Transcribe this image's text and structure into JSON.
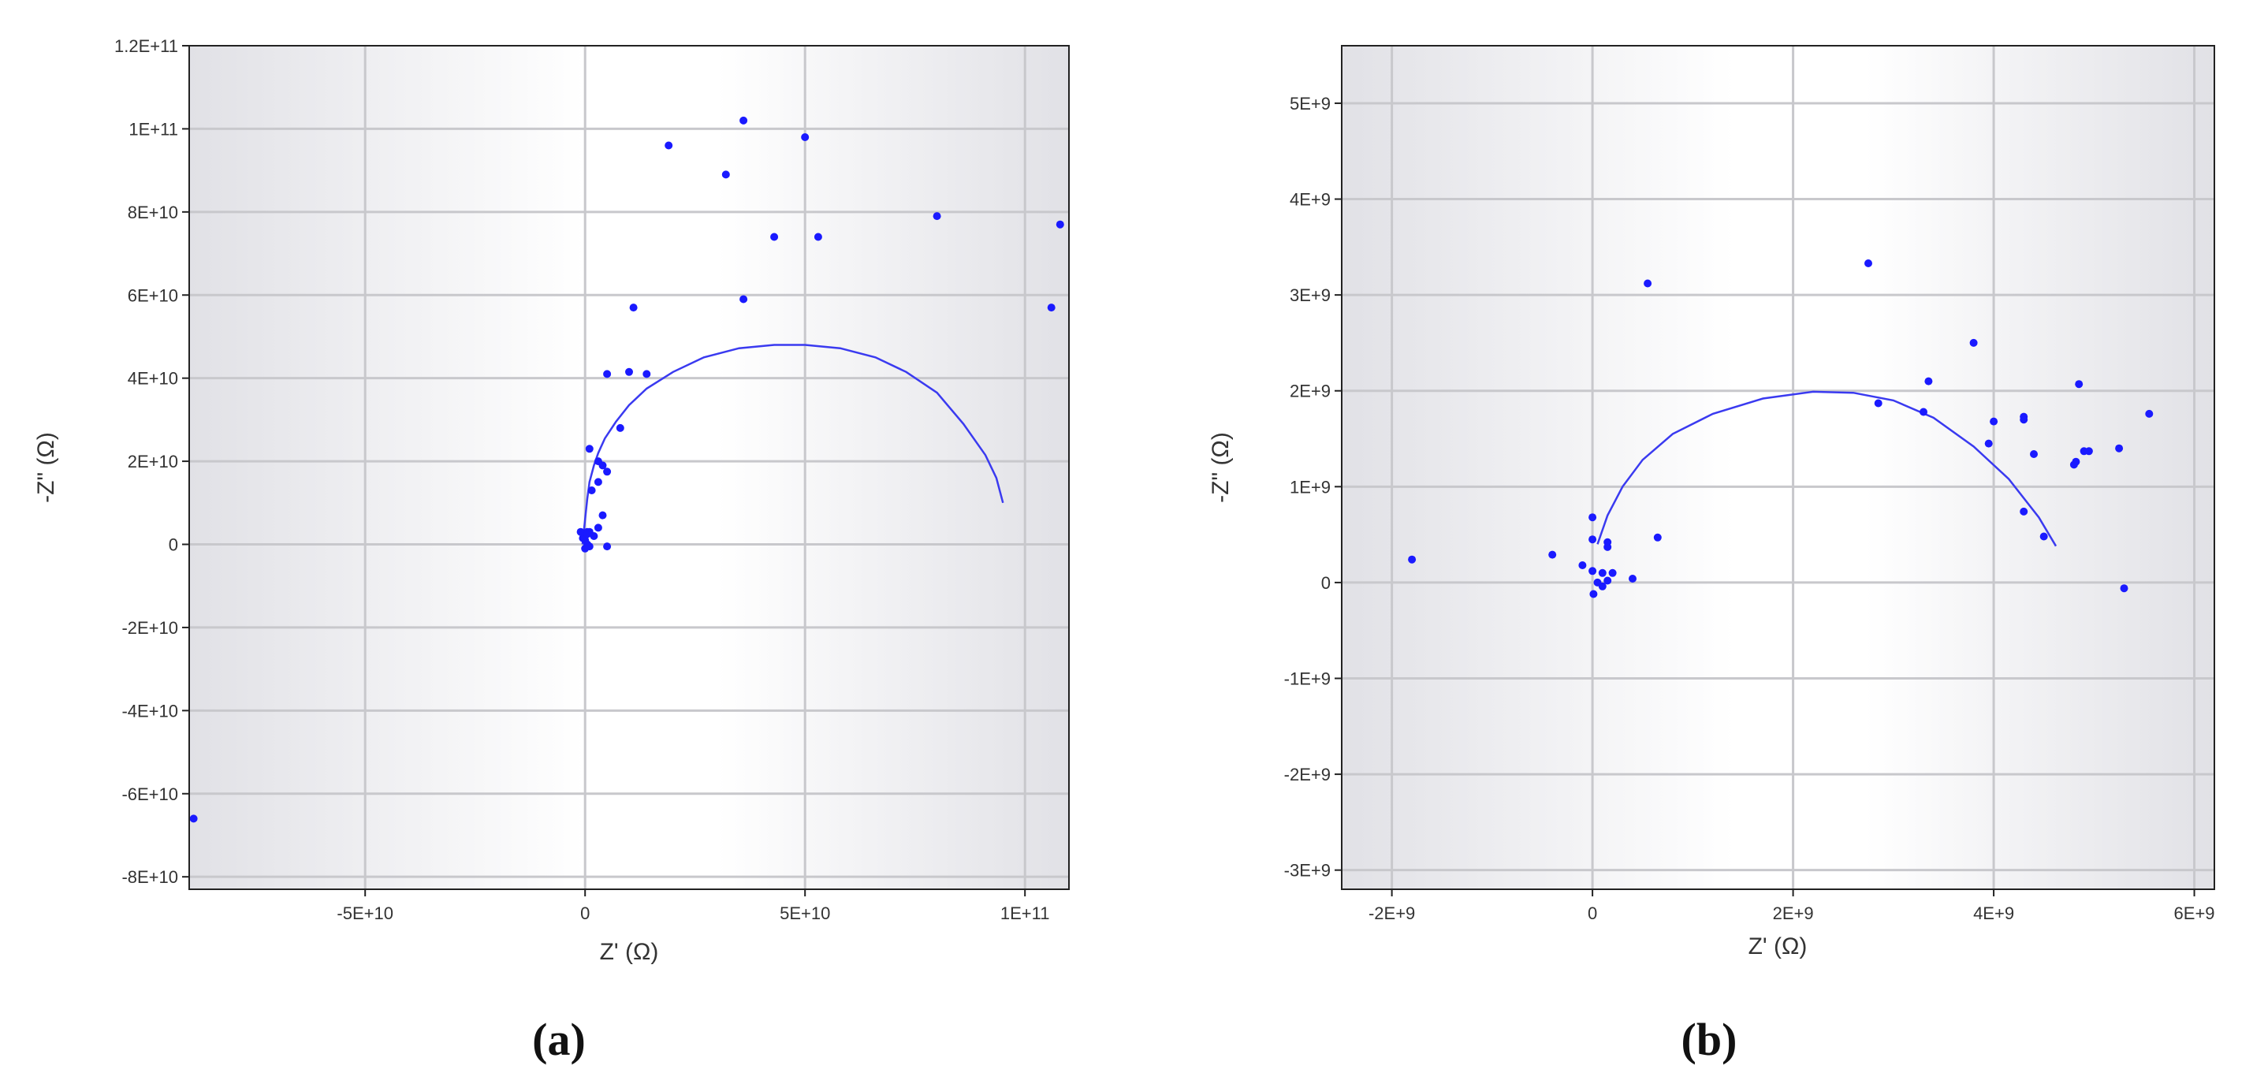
{
  "chart_data": [
    {
      "type": "scatter",
      "panel_label": "(a)",
      "xlabel": "Z' (Ω)",
      "ylabel": "-Z\" (Ω)",
      "xlim": [
        -90000000000.0,
        110000000000.0
      ],
      "ylim": [
        -83000000000.0,
        120000000000.0
      ],
      "x_ticks": [
        {
          "value": -50000000000.0,
          "label": "-5E+10"
        },
        {
          "value": 0,
          "label": "0"
        },
        {
          "value": 50000000000.0,
          "label": "5E+10"
        },
        {
          "value": 100000000000.0,
          "label": "1E+11"
        }
      ],
      "y_ticks": [
        {
          "value": 120000000000.0,
          "label": "1.2E+11"
        },
        {
          "value": 100000000000.0,
          "label": "1E+11"
        },
        {
          "value": 80000000000.0,
          "label": "8E+10"
        },
        {
          "value": 60000000000.0,
          "label": "6E+10"
        },
        {
          "value": 40000000000.0,
          "label": "4E+10"
        },
        {
          "value": 20000000000.0,
          "label": "2E+10"
        },
        {
          "value": 0,
          "label": "0"
        },
        {
          "value": -20000000000.0,
          "label": "-2E+10"
        },
        {
          "value": -40000000000.0,
          "label": "-4E+10"
        },
        {
          "value": -60000000000.0,
          "label": "-6E+10"
        },
        {
          "value": -80000000000.0,
          "label": "-8E+10"
        }
      ],
      "grid": true,
      "color": "#1a1aff",
      "series": [
        {
          "kind": "points",
          "x": [
            36000000000.0,
            50000000000.0,
            19000000000.0,
            32000000000.0,
            80000000000.0,
            108000000000.0,
            43000000000.0,
            53000000000.0,
            36000000000.0,
            11000000000.0,
            106000000000.0,
            5000000000.0,
            10000000000.0,
            14000000000.0,
            8000000000.0,
            1000000000.0,
            3000000000.0,
            4000000000.0,
            5000000000.0,
            3000000000.0,
            1500000000.0,
            4000000000.0,
            3000000000.0,
            500000000.0,
            1000000000.0,
            2000000000.0,
            -1000000000.0,
            0,
            500000000.0,
            1000000000.0,
            0,
            -500000000.0,
            500000000.0,
            5000000000.0,
            -89000000000.0
          ],
          "y": [
            102000000000.0,
            98000000000.0,
            96000000000.0,
            89000000000.0,
            79000000000.0,
            77000000000.0,
            74000000000.0,
            74000000000.0,
            59000000000.0,
            57000000000.0,
            57000000000.0,
            41000000000.0,
            41500000000.0,
            41000000000.0,
            28000000000.0,
            23000000000.0,
            20000000000.0,
            19000000000.0,
            17500000000.0,
            15000000000.0,
            13000000000.0,
            7000000000.0,
            4000000000.0,
            3000000000.0,
            3000000000.0,
            2000000000.0,
            3000000000.0,
            1000000000.0,
            0,
            -500000000.0,
            -1000000000.0,
            1500000000.0,
            2500000000.0,
            -500000000.0,
            -66000000000.0
          ]
        },
        {
          "kind": "fit-curve",
          "x": [
            -600000000.0,
            -200000000.0,
            200000000.0,
            500000000.0,
            1000000000.0,
            2000000000.0,
            3000000000.0,
            4500000000.0,
            7000000000.0,
            10000000000.0,
            14000000000.0,
            20000000000.0,
            27000000000.0,
            35000000000.0,
            43000000000.0,
            50000000000.0,
            58000000000.0,
            66000000000.0,
            73000000000.0,
            80000000000.0,
            86000000000.0,
            91000000000.0,
            93500000000.0,
            95000000000.0
          ],
          "y": [
            0,
            4000000000.0,
            8000000000.0,
            11000000000.0,
            15000000000.0,
            19000000000.0,
            22000000000.0,
            25500000000.0,
            29500000000.0,
            33500000000.0,
            37500000000.0,
            41500000000.0,
            45000000000.0,
            47200000000.0,
            48000000000.0,
            48000000000.0,
            47200000000.0,
            45000000000.0,
            41500000000.0,
            36500000000.0,
            29000000000.0,
            21500000000.0,
            16000000000.0,
            10000000000.0
          ]
        }
      ]
    },
    {
      "type": "scatter",
      "panel_label": "(b)",
      "xlabel": "Z' (Ω)",
      "ylabel": "-Z\" (Ω)",
      "xlim": [
        -2500000000.0,
        6200000000.0
      ],
      "ylim": [
        -3200000000.0,
        5600000000.0
      ],
      "x_ticks": [
        {
          "value": -2000000000.0,
          "label": "-2E+9"
        },
        {
          "value": 0,
          "label": "0"
        },
        {
          "value": 2000000000.0,
          "label": "2E+9"
        },
        {
          "value": 4000000000.0,
          "label": "4E+9"
        },
        {
          "value": 6000000000.0,
          "label": "6E+9"
        }
      ],
      "y_ticks": [
        {
          "value": 5000000000.0,
          "label": "5E+9"
        },
        {
          "value": 4000000000.0,
          "label": "4E+9"
        },
        {
          "value": 3000000000.0,
          "label": "3E+9"
        },
        {
          "value": 2000000000.0,
          "label": "2E+9"
        },
        {
          "value": 1000000000.0,
          "label": "1E+9"
        },
        {
          "value": 0,
          "label": "0"
        },
        {
          "value": -1000000000.0,
          "label": "-1E+9"
        },
        {
          "value": -2000000000.0,
          "label": "-2E+9"
        },
        {
          "value": -3000000000.0,
          "label": "-3E+9"
        }
      ],
      "grid": true,
      "color": "#1a1aff",
      "series": [
        {
          "kind": "points",
          "x": [
            2750000000.0,
            550000000.0,
            3800000000.0,
            3350000000.0,
            4850000000.0,
            3300000000.0,
            2850000000.0,
            4300000000.0,
            4300000000.0,
            4000000000.0,
            5550000000.0,
            3950000000.0,
            4400000000.0,
            4900000000.0,
            4950000000.0,
            5250000000.0,
            4800000000.0,
            4820000000.0,
            4300000000.0,
            4500000000.0,
            650000000.0,
            5300000000.0,
            0,
            0,
            150000000.0,
            150000000.0,
            -400000000.0,
            -100000000.0,
            0,
            100000000.0,
            200000000.0,
            400000000.0,
            50000000.0,
            10000000.0,
            150000000.0,
            100000000.0,
            -1800000000.0
          ],
          "y": [
            3330000000.0,
            3120000000.0,
            2500000000.0,
            2100000000.0,
            2070000000.0,
            1780000000.0,
            1870000000.0,
            1730000000.0,
            1700000000.0,
            1680000000.0,
            1760000000.0,
            1450000000.0,
            1340000000.0,
            1370000000.0,
            1370000000.0,
            1400000000.0,
            1230000000.0,
            1260000000.0,
            740000000.0,
            480000000.0,
            470000000.0,
            -60000000.0,
            680000000.0,
            450000000.0,
            420000000.0,
            370000000.0,
            290000000.0,
            180000000.0,
            120000000.0,
            100000000.0,
            100000000.0,
            40000000.0,
            0,
            -120000000.0,
            20000000.0,
            -40000000.0,
            240000000.0
          ]
        },
        {
          "kind": "fit-curve",
          "x": [
            50000000.0,
            150000000.0,
            300000000.0,
            500000000.0,
            800000000.0,
            1200000000.0,
            1700000000.0,
            2200000000.0,
            2600000000.0,
            3000000000.0,
            3400000000.0,
            3800000000.0,
            4150000000.0,
            4450000000.0,
            4620000000.0
          ],
          "y": [
            400000000.0,
            700000000.0,
            1000000000.0,
            1280000000.0,
            1550000000.0,
            1760000000.0,
            1920000000.0,
            1990000000.0,
            1980000000.0,
            1900000000.0,
            1720000000.0,
            1420000000.0,
            1080000000.0,
            680000000.0,
            380000000.0
          ]
        }
      ]
    }
  ]
}
